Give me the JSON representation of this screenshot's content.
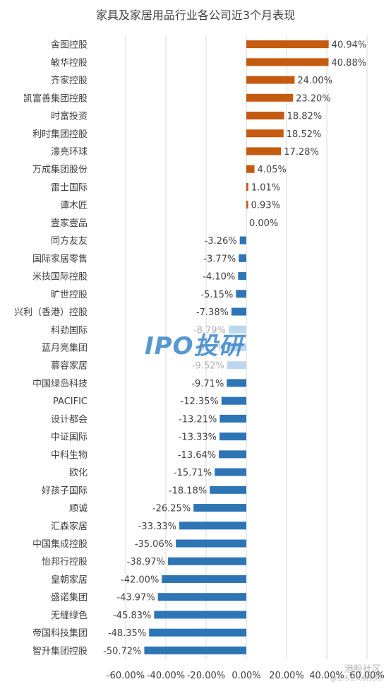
{
  "chart_data": {
    "type": "bar",
    "orientation": "horizontal",
    "title": "家具及家居用品行业各公司近3个月表现",
    "categories": [
      "舍图控股",
      "敏华控股",
      "齐家控股",
      "凯富善集团控股",
      "时富投资",
      "利时集团控股",
      "濠亮环球",
      "万成集团股份",
      "雷士国际",
      "谭木匠",
      "壹家壹品",
      "同方友友",
      "国际家居零售",
      "米技国际控股",
      "旷世控股",
      "兴利（香港）控股",
      "科劲国际",
      "蓝月亮集团",
      "慕容家居",
      "中国绿岛科技",
      "PACIFIC",
      "设计都会",
      "中证国际",
      "中科生物",
      "欧化",
      "好孩子国际",
      "顺诚",
      "汇森家居",
      "中国集成控股",
      "怡邦行控股",
      "皇朝家居",
      "盛诺集团",
      "无缝绿色",
      "帝国科技集团",
      "智升集团控股"
    ],
    "values": [
      40.94,
      40.88,
      24.0,
      23.2,
      18.82,
      18.52,
      17.28,
      4.05,
      1.01,
      0.93,
      0.0,
      -3.26,
      -3.77,
      -4.1,
      -5.15,
      -7.38,
      -8.79,
      -9.0,
      -9.52,
      -9.71,
      -12.35,
      -13.21,
      -13.33,
      -13.64,
      -15.71,
      -18.18,
      -26.25,
      -33.33,
      -35.06,
      -38.97,
      -42.0,
      -43.97,
      -45.83,
      -48.35,
      -50.72
    ],
    "labels": [
      "40.94%",
      "40.88%",
      "24.00%",
      "23.20%",
      "18.82%",
      "18.52%",
      "17.28%",
      "4.05%",
      "1.01%",
      "0.93%",
      "0.00%",
      "-3.26%",
      "-3.77%",
      "-4.10%",
      "-5.15%",
      "-7.38%",
      "-8.79%",
      "-9.…%",
      "-9.52%",
      "-9.71%",
      "-12.35%",
      "-13.21%",
      "-13.33%",
      "-13.64%",
      "-15.71%",
      "-18.18%",
      "-26.25%",
      "-33.33%",
      "-35.06%",
      "-38.97%",
      "-42.00%",
      "-43.97%",
      "-45.83%",
      "-48.35%",
      "-50.72%"
    ],
    "xlim": [
      -60,
      60
    ],
    "xticks": [
      "-60.00%",
      "-40.00%",
      "-20.00%",
      "0.00%",
      "20.00%",
      "40.00%",
      "60.00%"
    ],
    "grid": true,
    "legend": "none",
    "colors": {
      "positive": "#c55a11",
      "negative": "#2e75b6",
      "faded": "#bdd7ee",
      "grid": "#d9d9d9",
      "text": "#404040"
    },
    "faded_indices": [
      16,
      17,
      18
    ]
  },
  "watermark": {
    "main": "IPO投研",
    "corner": "港股社区",
    "corner_sub": "@上市公司研究院"
  }
}
